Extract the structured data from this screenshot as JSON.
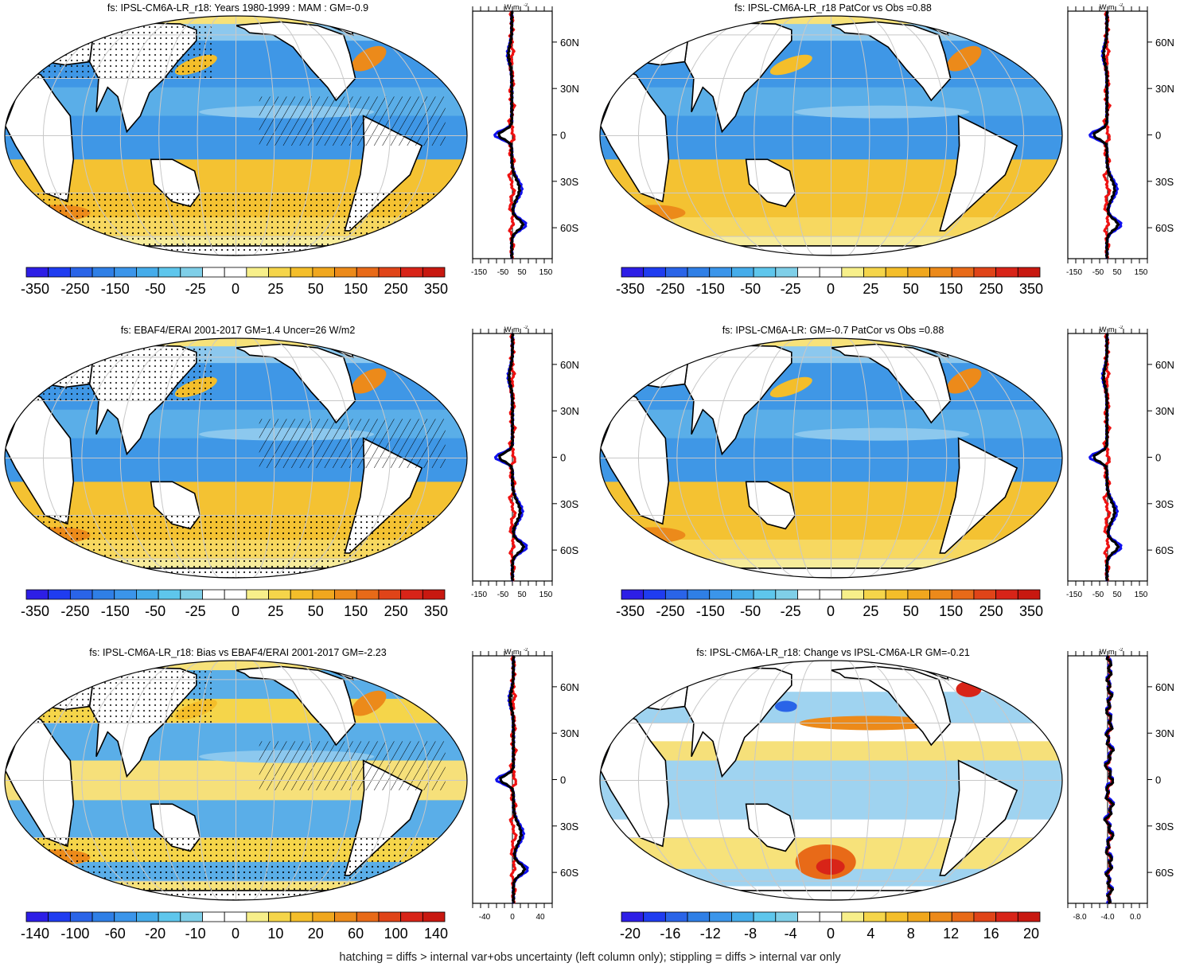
{
  "panels": [
    {
      "id": "p1",
      "title": "fs: IPSL-CM6A-LR_r18: Years 1980-1999 : MAM : GM=-0.9",
      "scale": [
        "-350",
        "-250",
        "-150",
        "-50",
        "-25",
        "0",
        "25",
        "50",
        "150",
        "250",
        "350"
      ],
      "zonal_ticks": [
        "-150",
        "-50",
        "50",
        "150"
      ],
      "zonal_bias": -0.2,
      "hatch": true,
      "stipple": true
    },
    {
      "id": "p2",
      "title": "fs: IPSL-CM6A-LR_r18 PatCor vs Obs =0.88",
      "scale": [
        "-350",
        "-250",
        "-150",
        "-50",
        "-25",
        "0",
        "25",
        "50",
        "150",
        "250",
        "350"
      ],
      "zonal_ticks": [
        "-150",
        "-50",
        "50",
        "150"
      ],
      "zonal_bias": -0.2,
      "hatch": false,
      "stipple": false
    },
    {
      "id": "p3",
      "title": "fs: EBAF4/ERAI 2001-2017 GM=1.4 Uncer=26 W/m2",
      "scale": [
        "-350",
        "-250",
        "-150",
        "-50",
        "-25",
        "0",
        "25",
        "50",
        "150",
        "250",
        "350"
      ],
      "zonal_ticks": [
        "-150",
        "-50",
        "50",
        "150"
      ],
      "zonal_bias": 0.0,
      "hatch": true,
      "stipple": true
    },
    {
      "id": "p4",
      "title": "fs: IPSL-CM6A-LR: GM=-0.7 PatCor vs Obs =0.88",
      "scale": [
        "-350",
        "-250",
        "-150",
        "-50",
        "-25",
        "0",
        "25",
        "50",
        "150",
        "250",
        "350"
      ],
      "zonal_ticks": [
        "-150",
        "-50",
        "50",
        "150"
      ],
      "zonal_bias": -0.2,
      "hatch": false,
      "stipple": false
    },
    {
      "id": "p5",
      "title": "fs: IPSL-CM6A-LR_r18: Bias vs EBAF4/ERAI 2001-2017 GM=-2.23",
      "scale": [
        "-140",
        "-100",
        "-60",
        "-20",
        "-10",
        "0",
        "10",
        "20",
        "60",
        "100",
        "140"
      ],
      "zonal_ticks": [
        "-40",
        "0",
        "40"
      ],
      "zonal_bias": 0.3,
      "hatch": true,
      "stipple": true
    },
    {
      "id": "p6",
      "title": "fs: IPSL-CM6A-LR_r18: Change vs IPSL-CM6A-LR GM=-0.21",
      "scale": [
        "-20",
        "-16",
        "-12",
        "-8",
        "-4",
        "0",
        "4",
        "8",
        "12",
        "16",
        "20"
      ],
      "zonal_ticks": [
        "-8.0",
        "-4.0",
        "0.0"
      ],
      "zonal_bias": 0.5,
      "hatch": false,
      "stipple": false
    }
  ],
  "lat_labels": [
    "60N",
    "30N",
    "0",
    "30S",
    "60S"
  ],
  "zonal_units": "W m",
  "zonal_units_sup": "-2",
  "colors": {
    "palette": [
      "#2d1ee6",
      "#1f3cf0",
      "#2a64e8",
      "#2f7fe6",
      "#3b95ea",
      "#45acea",
      "#5ec6ec",
      "#7fcfe8",
      "#ffffff",
      "#ffffff",
      "#f7ef8a",
      "#f5d54a",
      "#f4be2a",
      "#f0a71e",
      "#ec8a1a",
      "#e86a18",
      "#e04418",
      "#d82418",
      "#c81810"
    ],
    "ocean_blue": "#3f97e6",
    "ocean_light": "#8cc8ee",
    "ocean_yellow": "#f2c438",
    "ocean_pale": "#f7e27a",
    "line_black": "#000000",
    "line_red": "#ee1111",
    "line_blue": "#1111ee"
  },
  "footer": "hatching = diffs > internal var+obs uncertainty (left column only); stippling = diffs > internal var only"
}
